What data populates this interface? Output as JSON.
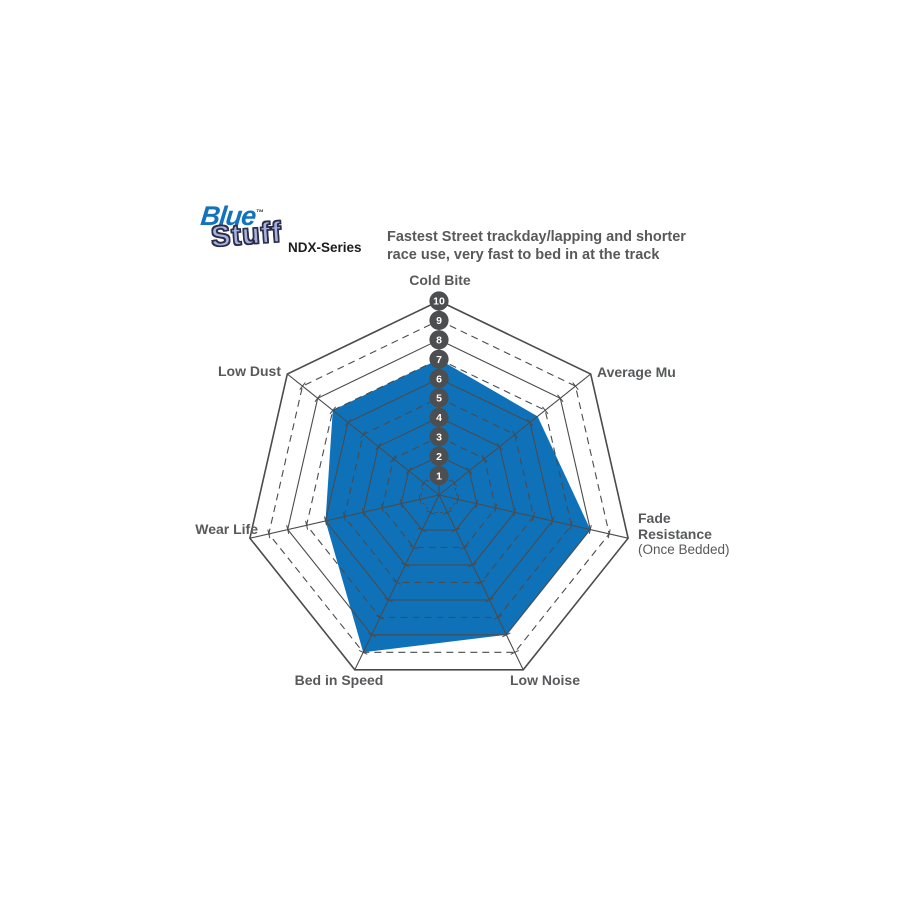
{
  "brand": {
    "logo_line1": "Blue",
    "logo_tm": "™",
    "logo_line2": "Stuff",
    "series": "NDX-Series"
  },
  "description": {
    "line1": "Fastest Street trackday/lapping and shorter",
    "line2": "race use, very fast to bed in at the track"
  },
  "chart_data": {
    "type": "radar",
    "title": "Bluestuff NDX-Series pad performance ratings",
    "categories": [
      "Cold Bite",
      "Average Mu",
      "Fade Resistance (Once Bedded)",
      "Low Noise",
      "Bed in Speed",
      "Wear Life",
      "Low Dust"
    ],
    "series": [
      {
        "name": "Bluestuff NDX",
        "values": [
          7,
          6.5,
          8,
          8,
          9,
          6,
          7
        ]
      }
    ],
    "scale_min": 0,
    "scale_max": 10,
    "scale_ticks": [
      1,
      2,
      3,
      4,
      5,
      6,
      7,
      8,
      9,
      10
    ],
    "grid": "on",
    "legend_position": "none",
    "fill_color": "#0f72b9",
    "grid_color": "#4a4b4d",
    "badge_color": "#4d4e50",
    "badge_text_color": "#ffffff",
    "label_color": "#58595b"
  },
  "axis_labels": {
    "cold_bite": "Cold Bite",
    "average_mu": "Average Mu",
    "fade_line1": "Fade",
    "fade_line2": "Resistance",
    "fade_line3": "(Once Bedded)",
    "low_noise": "Low Noise",
    "bed_in_speed": "Bed in Speed",
    "wear_life": "Wear Life",
    "low_dust": "Low Dust"
  }
}
